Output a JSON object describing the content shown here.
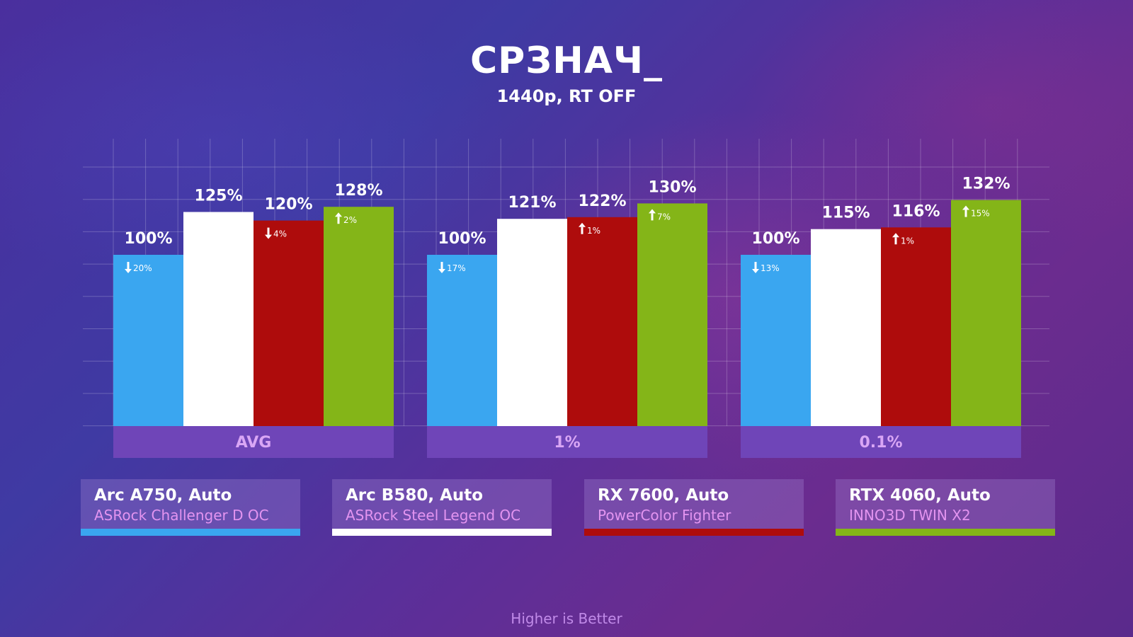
{
  "chart_data": {
    "type": "bar",
    "title": "СРЗНАЧ_",
    "subtitle": "1440p, RT OFF",
    "categories": [
      "AVG",
      "1%",
      "0.1%"
    ],
    "series": [
      {
        "name": "Arc A750, Auto",
        "values": [
          100,
          100,
          100
        ],
        "deltas": [
          "20%",
          "17%",
          "13%"
        ],
        "delta_dirs": [
          "down",
          "down",
          "down"
        ],
        "color": "#3aa6f0"
      },
      {
        "name": "Arc B580, Auto",
        "values": [
          125,
          121,
          115
        ],
        "deltas": [
          "",
          "",
          ""
        ],
        "delta_dirs": [
          "",
          "",
          ""
        ],
        "color": "#ffffff"
      },
      {
        "name": "RX 7600, Auto",
        "values": [
          120,
          122,
          116
        ],
        "deltas": [
          "4%",
          "1%",
          "1%"
        ],
        "delta_dirs": [
          "down",
          "up",
          "up"
        ],
        "color": "#ae0c0c"
      },
      {
        "name": "RTX 4060, Auto",
        "values": [
          128,
          130,
          132
        ],
        "deltas": [
          "2%",
          "7%",
          "15%"
        ],
        "delta_dirs": [
          "up",
          "up",
          "up"
        ],
        "color": "#84b518"
      }
    ],
    "value_labels": [
      "100%",
      "125%",
      "120%",
      "128%",
      "100%",
      "121%",
      "122%",
      "130%",
      "100%",
      "115%",
      "116%",
      "132%"
    ],
    "grid": true,
    "legend_position": "bottom"
  },
  "legend": [
    {
      "name": "Arc A750, Auto",
      "sub": "ASRock Challenger D OC",
      "color": "#3aa6f0"
    },
    {
      "name": "Arc B580, Auto",
      "sub": "ASRock Steel Legend OC",
      "color": "#ffffff"
    },
    {
      "name": "RX 7600, Auto",
      "sub": "PowerColor Fighter",
      "color": "#ae0c0c"
    },
    {
      "name": "RTX 4060, Auto",
      "sub": "INNO3D TWIN X2",
      "color": "#84b518"
    }
  ],
  "footer": "Higher is Better"
}
